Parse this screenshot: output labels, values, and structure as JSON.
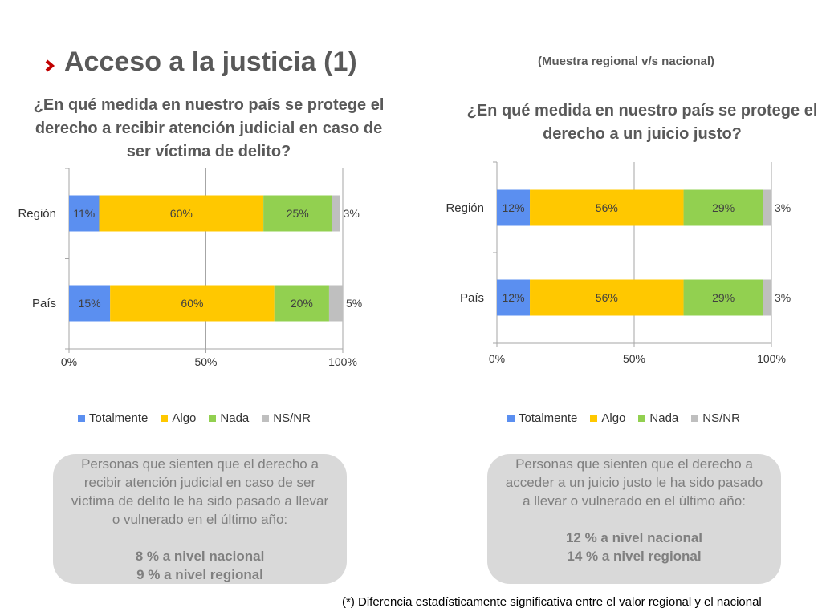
{
  "header": {
    "title": "Acceso a la justicia (1)",
    "subtitle": "(Muestra regional v/s nacional)"
  },
  "colors": {
    "Totalmente": "#5b8ff0",
    "Algo": "#ffc800",
    "Nada": "#92d050",
    "NS/NR": "#bfbfbf",
    "accent": "#c00000"
  },
  "icons": {
    "title_bullet": "chevron-right-icon"
  },
  "chart_data": [
    {
      "type": "bar",
      "orientation": "horizontal",
      "stacked": true,
      "title": "¿En qué medida en nuestro país se protege el derecho a recibir atención judicial en caso de ser víctima de delito?",
      "categories": [
        "Región",
        "País"
      ],
      "series": [
        {
          "name": "Totalmente",
          "values": [
            11,
            15
          ],
          "labels": [
            "11%",
            "15%"
          ]
        },
        {
          "name": "Algo",
          "values": [
            60,
            60
          ],
          "labels": [
            "60%",
            "60%"
          ]
        },
        {
          "name": "Nada",
          "values": [
            25,
            20
          ],
          "labels": [
            "25%",
            "20%"
          ]
        },
        {
          "name": "NS/NR",
          "values": [
            3,
            5
          ],
          "labels": [
            "3%",
            "5%"
          ]
        }
      ],
      "xlim": [
        0,
        100
      ],
      "xticks": [
        "0%",
        "50%",
        "100%"
      ],
      "grid": true,
      "legend": "bottom"
    },
    {
      "type": "bar",
      "orientation": "horizontal",
      "stacked": true,
      "title": "¿En qué medida en nuestro país se protege el derecho a un juicio justo?",
      "categories": [
        "Región",
        "País"
      ],
      "series": [
        {
          "name": "Totalmente",
          "values": [
            12,
            12
          ],
          "labels": [
            "12%",
            "12%"
          ]
        },
        {
          "name": "Algo",
          "values": [
            56,
            56
          ],
          "labels": [
            "56%",
            "56%"
          ]
        },
        {
          "name": "Nada",
          "values": [
            29,
            29
          ],
          "labels": [
            "29%",
            "29%"
          ]
        },
        {
          "name": "NS/NR",
          "values": [
            3,
            3
          ],
          "labels": [
            "3%",
            "3%"
          ]
        }
      ],
      "xlim": [
        0,
        100
      ],
      "xticks": [
        "0%",
        "50%",
        "100%"
      ],
      "grid": true,
      "legend": "bottom"
    }
  ],
  "info_boxes": [
    {
      "text": "Personas que sienten que el derecho a recibir atención judicial en caso de ser víctima de delito le ha sido pasado a llevar o vulnerado en el último año:",
      "stat_national": "8 % a nivel nacional",
      "stat_regional": "9 % a nivel regional"
    },
    {
      "text": "Personas que sienten que el derecho a acceder a un juicio justo le ha sido pasado a llevar o vulnerado en el último año:",
      "stat_national": "12 % a nivel nacional",
      "stat_regional": "14 % a nivel regional"
    }
  ],
  "footnote": "(*) Diferencia estadísticamente significativa entre el valor regional y el nacional"
}
